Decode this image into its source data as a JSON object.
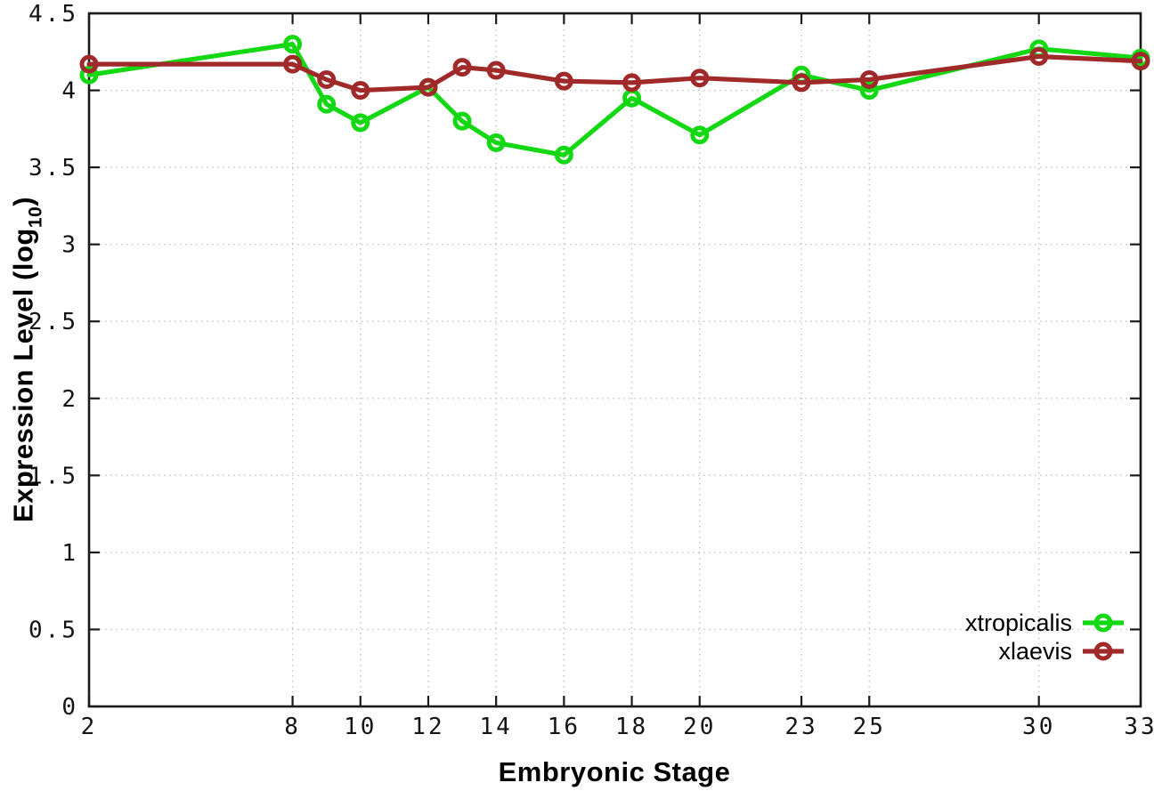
{
  "chart_data": {
    "type": "line",
    "title": "",
    "xlabel": "Embryonic Stage",
    "ylabel": "Expression Level (log10)",
    "ylabel_parts": {
      "main": "Expression Level (log",
      "sub": "10",
      "close": ")"
    },
    "xlim": [
      2,
      33
    ],
    "ylim": [
      0,
      4.5
    ],
    "grid": true,
    "legend_position": "bottom-right",
    "x": [
      2,
      8,
      9,
      10,
      12,
      13,
      14,
      16,
      18,
      20,
      23,
      25,
      30,
      33
    ],
    "x_ticks": [
      {
        "v": 2,
        "label": "2"
      },
      {
        "v": 8,
        "label": "8"
      },
      {
        "v": 10,
        "label": "10"
      },
      {
        "v": 12,
        "label": "12"
      },
      {
        "v": 14,
        "label": "14"
      },
      {
        "v": 16,
        "label": "16"
      },
      {
        "v": 18,
        "label": "18"
      },
      {
        "v": 20,
        "label": "20"
      },
      {
        "v": 23,
        "label": "23"
      },
      {
        "v": 25,
        "label": "25"
      },
      {
        "v": 30,
        "label": "30"
      },
      {
        "v": 33,
        "label": "33"
      }
    ],
    "y_ticks": [
      {
        "v": 0,
        "label": "0"
      },
      {
        "v": 0.5,
        "label": "0.5"
      },
      {
        "v": 1,
        "label": "1"
      },
      {
        "v": 1.5,
        "label": "1.5"
      },
      {
        "v": 2,
        "label": "2"
      },
      {
        "v": 2.5,
        "label": "2.5"
      },
      {
        "v": 3,
        "label": "3"
      },
      {
        "v": 3.5,
        "label": "3.5"
      },
      {
        "v": 4,
        "label": "4"
      },
      {
        "v": 4.5,
        "label": "4.5"
      }
    ],
    "series": [
      {
        "name": "xtropicalis",
        "color": "#14d814",
        "marker": "open-circle",
        "values": [
          4.1,
          4.3,
          3.91,
          3.79,
          4.02,
          3.8,
          3.66,
          3.58,
          3.95,
          3.71,
          4.1,
          4.0,
          4.27,
          4.21
        ]
      },
      {
        "name": "xlaevis",
        "color": "#a02a2a",
        "marker": "open-circle",
        "values": [
          4.17,
          4.17,
          4.07,
          4.0,
          4.02,
          4.15,
          4.13,
          4.06,
          4.05,
          4.08,
          4.05,
          4.07,
          4.22,
          4.19
        ]
      }
    ],
    "colors": {
      "background": "#ffffff",
      "grid": "#c3c3c3",
      "border": "#1b1b1b",
      "text": "#000000"
    }
  }
}
